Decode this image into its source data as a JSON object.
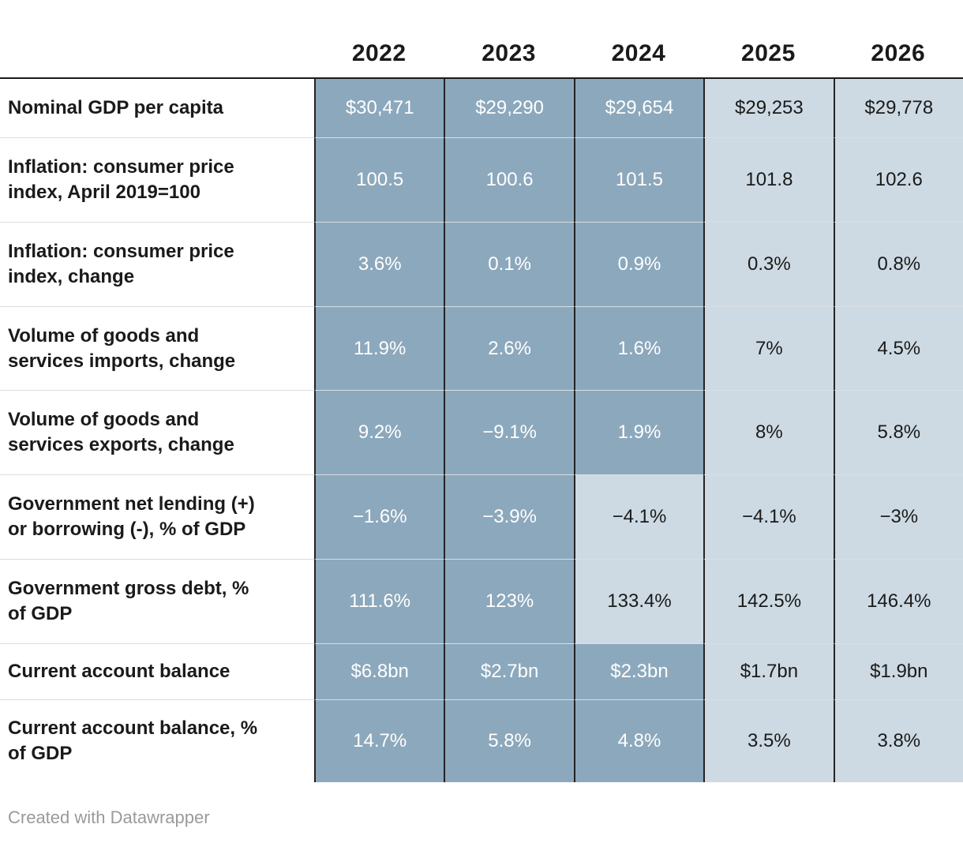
{
  "chart_data": {
    "type": "table",
    "title": "",
    "columns": [
      "2022",
      "2023",
      "2024",
      "2025",
      "2026"
    ],
    "rows": [
      {
        "label": "Nominal GDP per capita",
        "label_lines": [
          "Nominal GDP per capita"
        ],
        "values": [
          "$30,471",
          "$29,290",
          "$29,654",
          "$29,253",
          "$29,778"
        ],
        "shades": [
          "dark",
          "dark",
          "dark",
          "light",
          "light"
        ]
      },
      {
        "label": "Inflation: consumer price index, April 2019=100",
        "label_lines": [
          "Inflation: consumer price",
          "index, April 2019=100"
        ],
        "values": [
          "100.5",
          "100.6",
          "101.5",
          "101.8",
          "102.6"
        ],
        "shades": [
          "dark",
          "dark",
          "dark",
          "light",
          "light"
        ]
      },
      {
        "label": "Inflation: consumer price index, change",
        "label_lines": [
          "Inflation: consumer price",
          "index, change"
        ],
        "values": [
          "3.6%",
          "0.1%",
          "0.9%",
          "0.3%",
          "0.8%"
        ],
        "shades": [
          "dark",
          "dark",
          "dark",
          "light",
          "light"
        ]
      },
      {
        "label": "Volume of goods and services imports, change",
        "label_lines": [
          "Volume of goods and",
          "services imports, change"
        ],
        "values": [
          "11.9%",
          "2.6%",
          "1.6%",
          "7%",
          "4.5%"
        ],
        "shades": [
          "dark",
          "dark",
          "dark",
          "light",
          "light"
        ]
      },
      {
        "label": "Volume of goods and services exports, change",
        "label_lines": [
          "Volume of goods and",
          "services exports, change"
        ],
        "values": [
          "9.2%",
          "−9.1%",
          "1.9%",
          "8%",
          "5.8%"
        ],
        "shades": [
          "dark",
          "dark",
          "dark",
          "light",
          "light"
        ]
      },
      {
        "label": "Government net lending (+) or borrowing (-), % of GDP",
        "label_lines": [
          "Government net lending (+)",
          "or borrowing (-), % of GDP"
        ],
        "values": [
          "−1.6%",
          "−3.9%",
          "−4.1%",
          "−4.1%",
          "−3%"
        ],
        "shades": [
          "dark",
          "dark",
          "light",
          "light",
          "light"
        ]
      },
      {
        "label": "Government gross debt, % of GDP",
        "label_lines": [
          "Government gross debt, %",
          "of GDP"
        ],
        "values": [
          "111.6%",
          "123%",
          "133.4%",
          "142.5%",
          "146.4%"
        ],
        "shades": [
          "dark",
          "dark",
          "light",
          "light",
          "light"
        ]
      },
      {
        "label": "Current account balance",
        "label_lines": [
          "Current account balance"
        ],
        "values": [
          "$6.8bn",
          "$2.7bn",
          "$2.3bn",
          "$1.7bn",
          "$1.9bn"
        ],
        "shades": [
          "dark",
          "dark",
          "dark",
          "light",
          "light"
        ]
      },
      {
        "label": "Current account balance, % of GDP",
        "label_lines": [
          "Current account balance, %",
          "of GDP"
        ],
        "values": [
          "14.7%",
          "5.8%",
          "4.8%",
          "3.5%",
          "3.8%"
        ],
        "shades": [
          "dark",
          "dark",
          "dark",
          "light",
          "light"
        ]
      }
    ]
  },
  "colors": {
    "cell_dark": "#8CA8BC",
    "cell_light": "#CDDAE3",
    "text_on_dark": "#FFFFFF",
    "text_on_light": "#1A1A1A",
    "header_text": "#1A1A1A",
    "label_text": "#1A1A1A",
    "divider_vertical": "#232323",
    "divider_horizontal": "#DADEE1",
    "header_rule": "#1A1A1A",
    "credit_text": "#9A9A9A",
    "page_bg": "#FFFFFF"
  },
  "footer": {
    "credit": "Created with Datawrapper"
  }
}
